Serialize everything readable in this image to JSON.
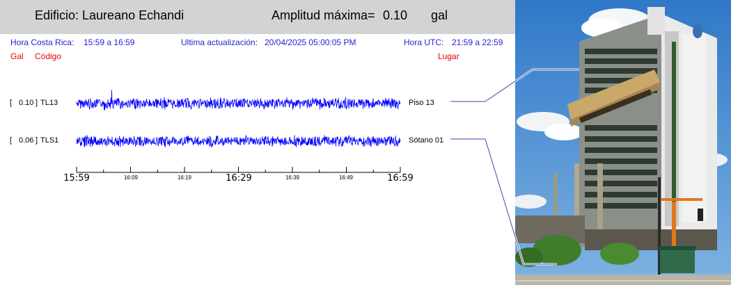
{
  "header": {
    "building_label": "Edificio: Laureano Echandi",
    "amplitude_label": "Amplitud máxima=",
    "amplitude_value": "0.10",
    "amplitude_unit": "gal"
  },
  "info_bar": {
    "cr_time_label": "Hora Costa Rica:",
    "cr_time_value": "15:59 a 16:59",
    "update_label": "Ultima actualización:",
    "update_value": "20/04/2025 05:00:05 PM",
    "utc_label": "Hora UTC:",
    "utc_value": "21:59 a 22:59"
  },
  "columns": {
    "gal": "Gal",
    "code": "Código",
    "place": "Lugar"
  },
  "chart_data": {
    "type": "line",
    "x_ticks_major": [
      "15:59",
      "16:29",
      "16:59"
    ],
    "x_ticks_minor": [
      "16:09",
      "16:19",
      "16:39",
      "16:49"
    ],
    "series": [
      {
        "peak": "0.10",
        "code": "TL13",
        "place": "Piso 13"
      },
      {
        "peak": "0.06",
        "code": "TLS1",
        "place": "Sótano 01"
      }
    ],
    "trace_color": "#0000ff"
  },
  "colors": {
    "header_bg": "#d3d3d3",
    "info_text": "#1f1fd2",
    "column_header": "#e60000",
    "trace": "#0000ff"
  }
}
